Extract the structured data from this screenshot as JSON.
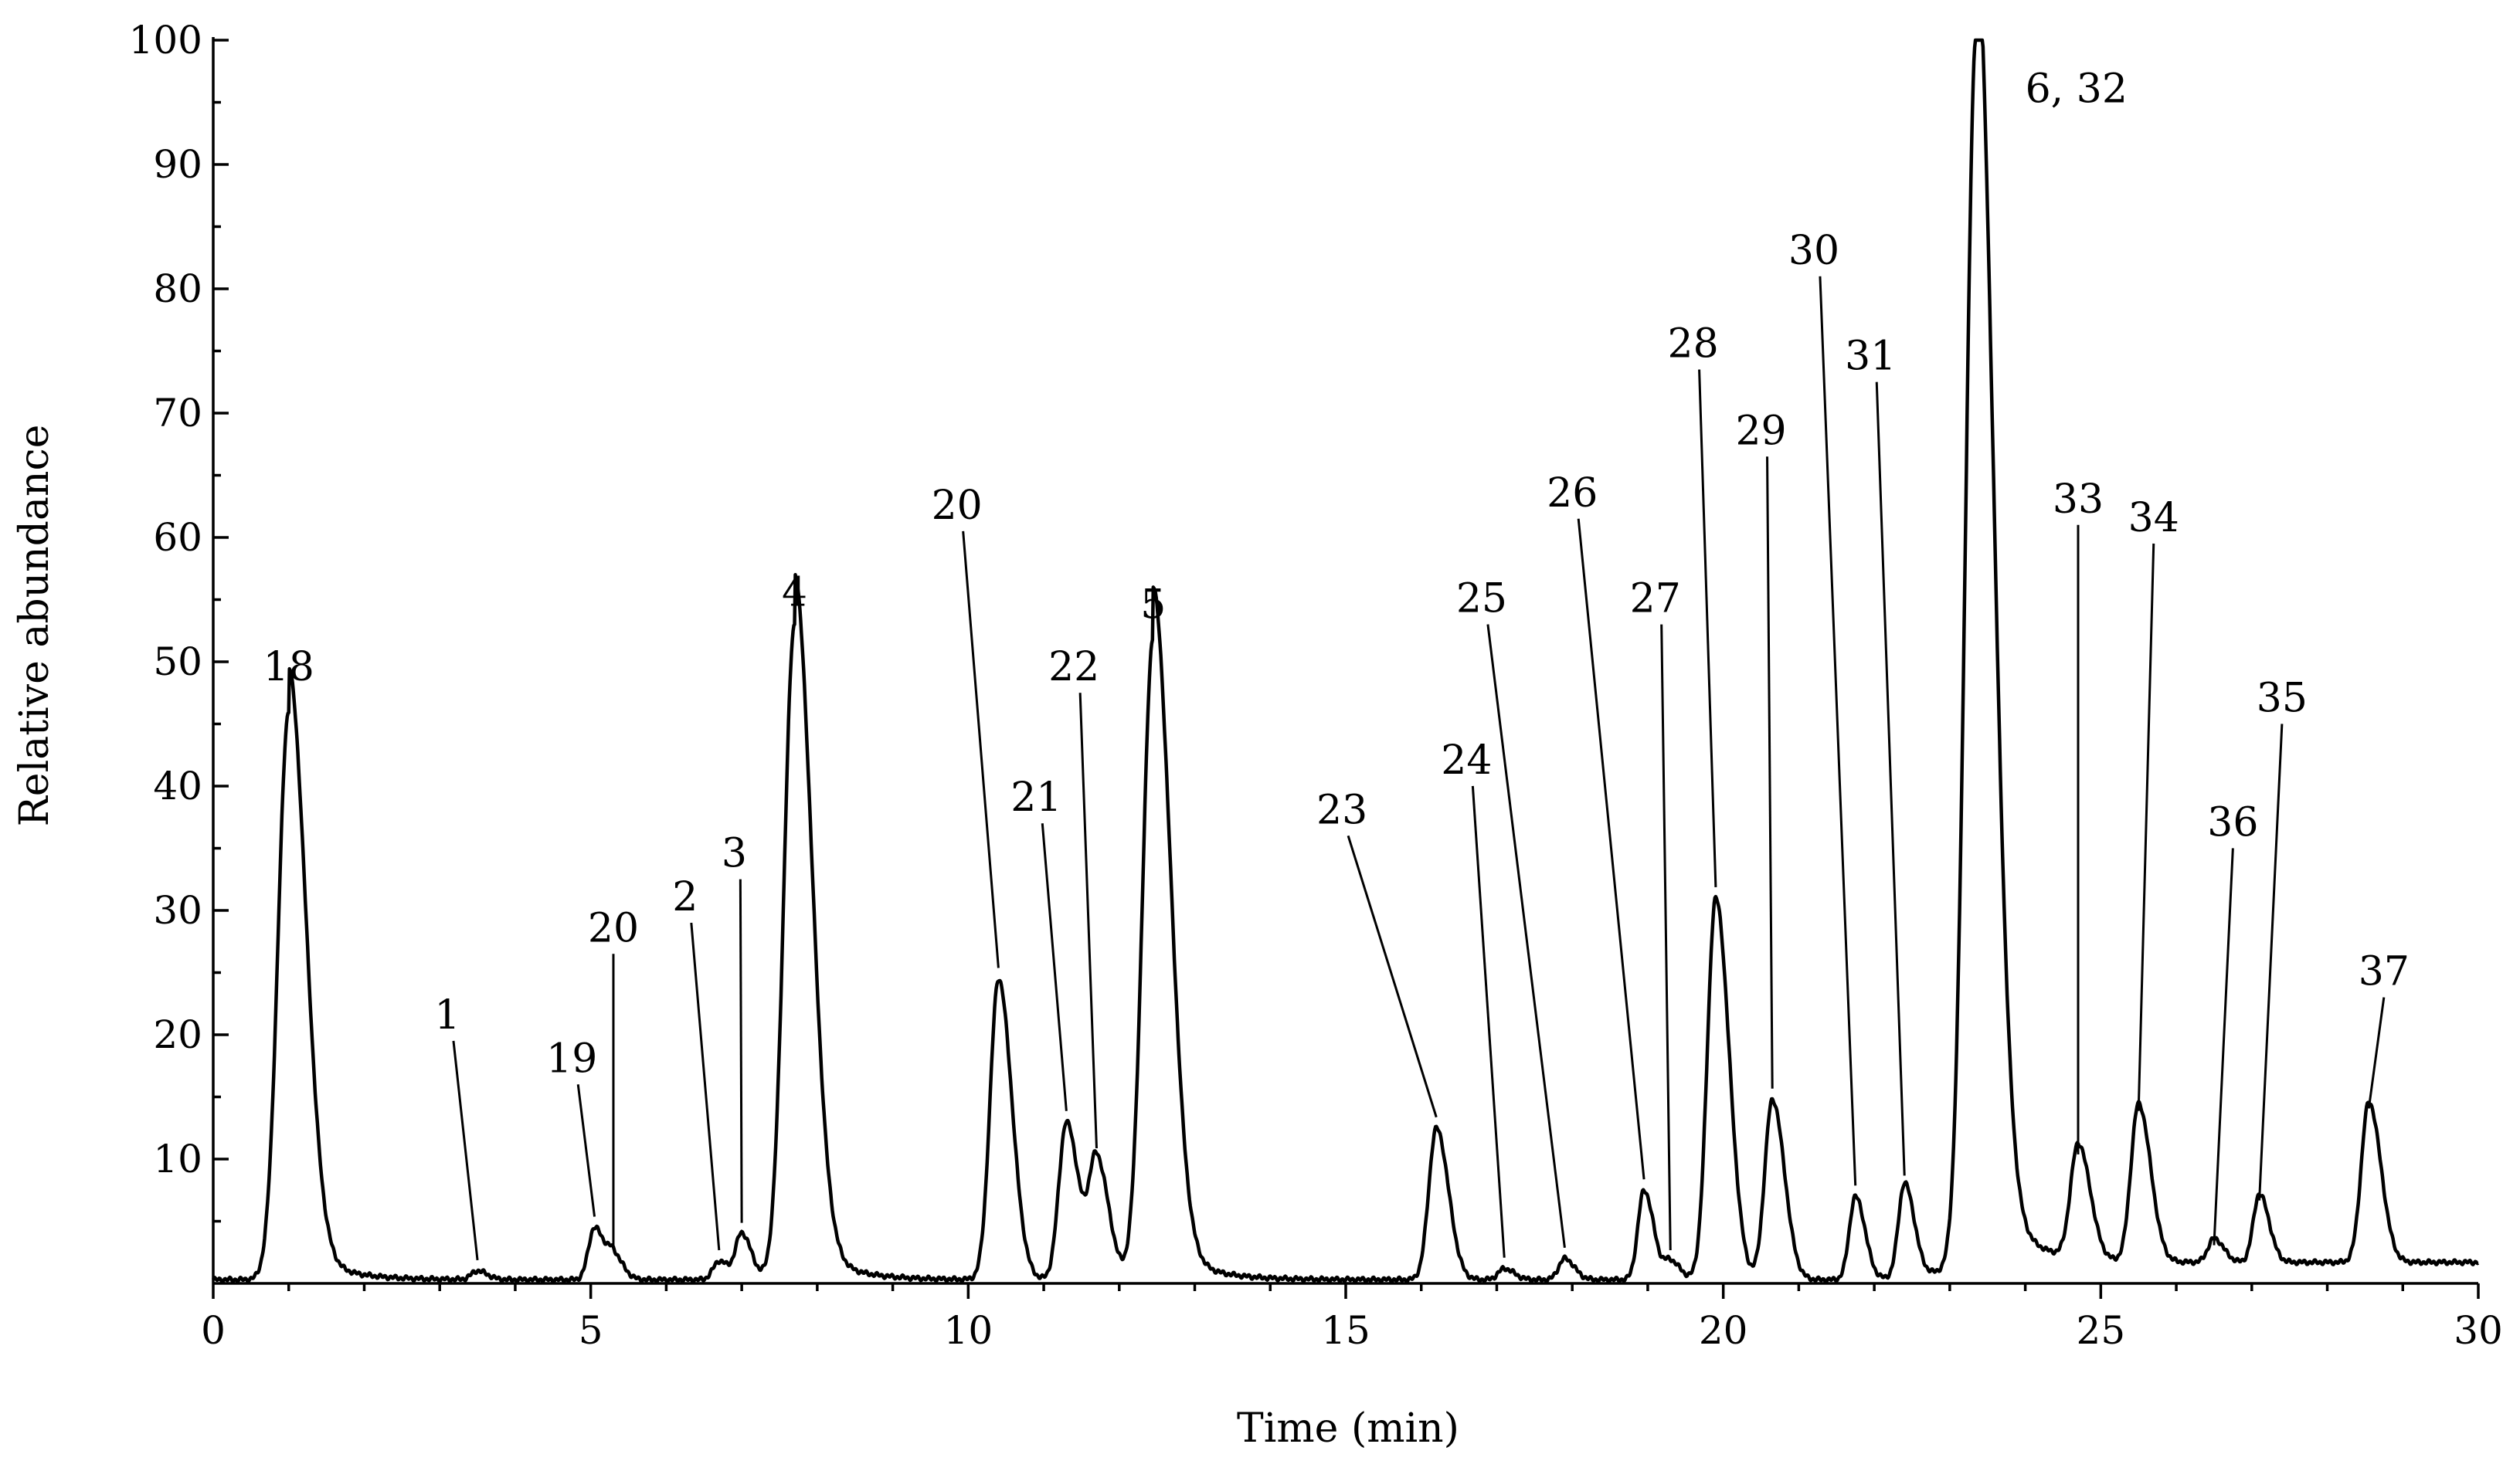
{
  "chart_data": {
    "type": "line",
    "title": "",
    "xlabel": "Time (min)",
    "ylabel": "Relative abundance",
    "xlim": [
      0,
      30
    ],
    "ylim": [
      0,
      100
    ],
    "x_ticks": [
      0,
      5,
      10,
      15,
      20,
      25,
      30
    ],
    "x_tick_labels": [
      "0",
      "5",
      "10",
      "15",
      "20",
      "25",
      "30"
    ],
    "y_ticks": [
      10,
      20,
      30,
      40,
      50,
      60,
      70,
      80,
      90,
      100
    ],
    "y_tick_labels": [
      "10",
      "20",
      "30",
      "40",
      "50",
      "60",
      "70",
      "80",
      "90",
      "100"
    ],
    "grid": false,
    "baseline": 0.3,
    "peaks": [
      {
        "label": "18",
        "time": 1.0,
        "abundance": 46.0
      },
      {
        "label": "1",
        "time": 3.5,
        "abundance": 1.0
      },
      {
        "label": "19",
        "time": 5.05,
        "abundance": 4.5
      },
      {
        "label": "20",
        "time": 5.3,
        "abundance": 2.2
      },
      {
        "label": "2",
        "time": 6.7,
        "abundance": 1.8
      },
      {
        "label": "3",
        "time": 7.0,
        "abundance": 4.0
      },
      {
        "label": "4",
        "time": 7.7,
        "abundance": 53.0
      },
      {
        "label": "20",
        "time": 10.4,
        "abundance": 24.5
      },
      {
        "label": "21",
        "time": 11.3,
        "abundance": 13.0
      },
      {
        "label": "22",
        "time": 11.7,
        "abundance": 10.0
      },
      {
        "label": "5",
        "time": 12.45,
        "abundance": 52.0
      },
      {
        "label": "23",
        "time": 16.2,
        "abundance": 12.5
      },
      {
        "label": "24",
        "time": 17.1,
        "abundance": 1.2
      },
      {
        "label": "25",
        "time": 17.9,
        "abundance": 2.0
      },
      {
        "label": "26",
        "time": 18.95,
        "abundance": 7.5
      },
      {
        "label": "27",
        "time": 19.3,
        "abundance": 1.8
      },
      {
        "label": "28",
        "time": 19.9,
        "abundance": 31.0
      },
      {
        "label": "29",
        "time": 20.65,
        "abundance": 14.8
      },
      {
        "label": "30",
        "time": 21.75,
        "abundance": 7.0
      },
      {
        "label": "31",
        "time": 22.4,
        "abundance": 7.8
      },
      {
        "label": "6, 32",
        "time": 23.35,
        "abundance": 99.5
      },
      {
        "label": "33",
        "time": 24.7,
        "abundance": 9.5
      },
      {
        "label": "34",
        "time": 25.5,
        "abundance": 13.0
      },
      {
        "label": "35",
        "time": 27.1,
        "abundance": 5.8
      },
      {
        "label": "36",
        "time": 26.5,
        "abundance": 2.2
      },
      {
        "label": "37",
        "time": 28.55,
        "abundance": 13.2
      }
    ]
  }
}
